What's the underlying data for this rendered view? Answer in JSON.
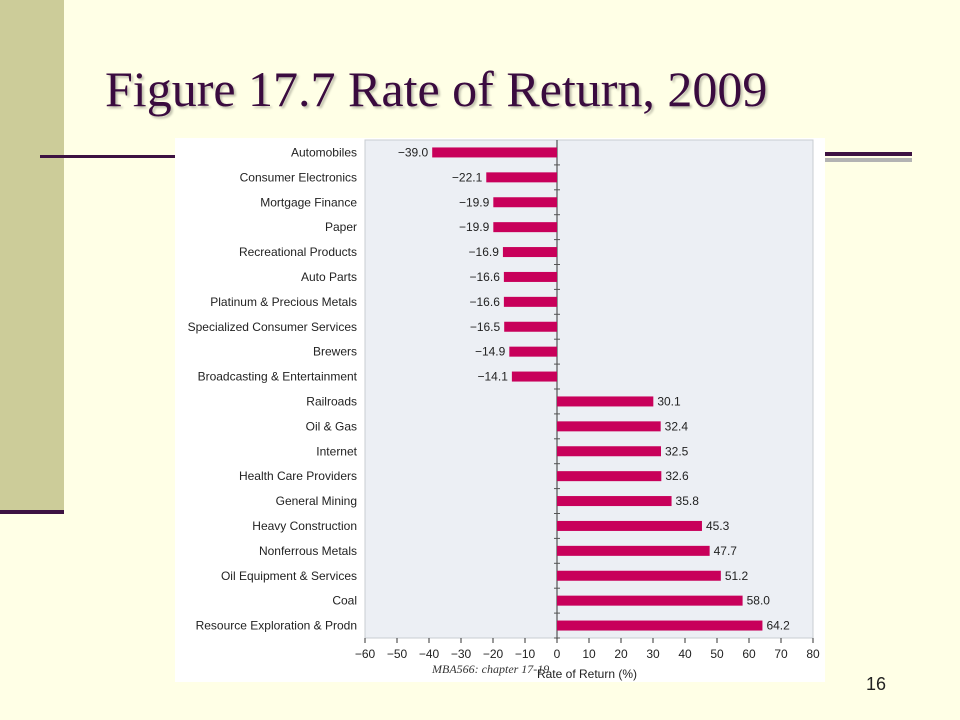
{
  "slide": {
    "title": "Figure 17.7 Rate of Return, 2009",
    "footer": "MBA566: chapter 17-19",
    "page_number": "16"
  },
  "colors": {
    "background": "#ffffe6",
    "sidebar": "#cccc99",
    "accent": "#3d1242",
    "bar": "#c8005a",
    "plot_bg": "#eceff4"
  },
  "chart_data": {
    "type": "bar",
    "orientation": "horizontal",
    "categories": [
      "Automobiles",
      "Consumer Electronics",
      "Mortgage Finance",
      "Paper",
      "Recreational Products",
      "Auto Parts",
      "Platinum & Precious Metals",
      "Specialized Consumer Services",
      "Brewers",
      "Broadcasting & Entertainment",
      "Railroads",
      "Oil & Gas",
      "Internet",
      "Health Care Providers",
      "General Mining",
      "Heavy Construction",
      "Nonferrous Metals",
      "Oil Equipment & Services",
      "Coal",
      "Resource Exploration & Prodn"
    ],
    "values": [
      -39.0,
      -22.1,
      -19.9,
      -19.9,
      -16.9,
      -16.6,
      -16.6,
      -16.5,
      -14.9,
      -14.1,
      30.1,
      32.4,
      32.5,
      32.6,
      35.8,
      45.3,
      47.7,
      51.2,
      58.0,
      64.2
    ],
    "value_labels": [
      "−39.0",
      "−22.1",
      "−19.9",
      "−19.9",
      "−16.9",
      "−16.6",
      "−16.6",
      "−16.5",
      "−14.9",
      "−14.1",
      "30.1",
      "32.4",
      "32.5",
      "32.6",
      "35.8",
      "45.3",
      "47.7",
      "51.2",
      "58.0",
      "64.2"
    ],
    "xlabel": "Rate of Return (%)",
    "ylabel": "",
    "xlim": [
      -60,
      80
    ],
    "xticks": [
      -60,
      -50,
      -40,
      -30,
      -20,
      -10,
      0,
      10,
      20,
      30,
      40,
      50,
      60,
      70,
      80
    ],
    "xtick_labels": [
      "−60",
      "−50",
      "−40",
      "−30",
      "−20",
      "−10",
      "0",
      "10",
      "20",
      "30",
      "40",
      "50",
      "60",
      "70",
      "80"
    ],
    "grid": false
  }
}
